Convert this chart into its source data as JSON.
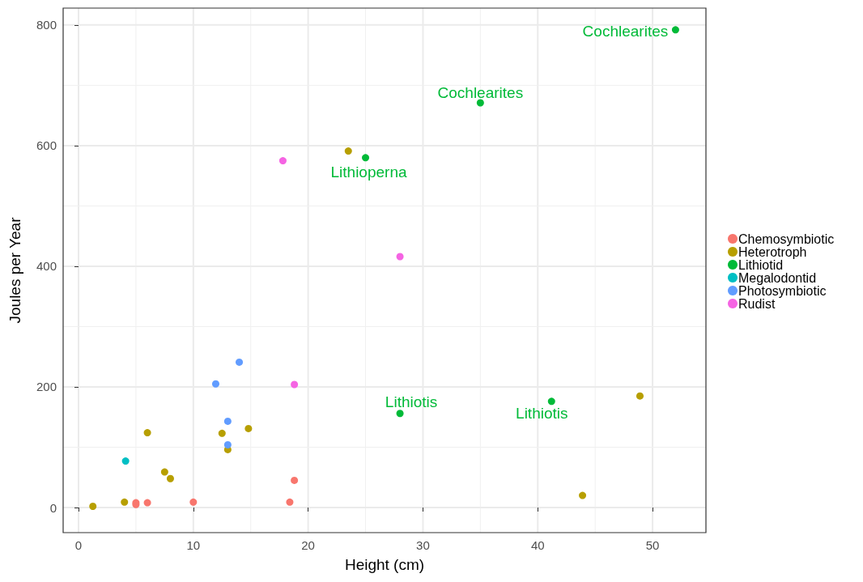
{
  "chart_data": {
    "type": "scatter",
    "xlabel": "Height (cm)",
    "ylabel": "Joules per Year",
    "xlim": [
      -1.34,
      54.65
    ],
    "ylim": [
      -41.6,
      828
    ],
    "xticks": [
      0,
      10,
      20,
      30,
      40,
      50
    ],
    "yticks": [
      0,
      200,
      400,
      600,
      800
    ],
    "grid": true,
    "legend": "right",
    "marker": "circle",
    "series": [
      {
        "name": "Chemosymbiotic",
        "color": "#f8766d",
        "x": [
          5.0,
          5.0,
          6.0,
          10.0,
          18.4,
          18.8
        ],
        "values": [
          8,
          5,
          8,
          9,
          9,
          45
        ]
      },
      {
        "name": "Heterotroph",
        "color": "#b79f00",
        "x": [
          1.25,
          4.0,
          6.0,
          7.5,
          8.0,
          12.5,
          13.0,
          14.8,
          23.5,
          43.9,
          48.9
        ],
        "values": [
          2,
          9,
          124,
          59,
          48,
          123,
          96,
          131,
          591,
          20,
          185
        ]
      },
      {
        "name": "Lithiotid",
        "color": "#00ba38",
        "x": [
          25.0,
          28.0,
          35.0,
          41.2,
          52.0
        ],
        "values": [
          580,
          156,
          671,
          176,
          792
        ]
      },
      {
        "name": "Megalodontid",
        "color": "#00bfc4",
        "x": [
          4.1
        ],
        "values": [
          77
        ]
      },
      {
        "name": "Photosymbiotic",
        "color": "#619cff",
        "x": [
          11.95,
          13.0,
          13.0,
          14.0
        ],
        "values": [
          205,
          143,
          104,
          241
        ]
      },
      {
        "name": "Rudist",
        "color": "#f564e3",
        "x": [
          17.8,
          18.8,
          28.0
        ],
        "values": [
          575,
          204,
          416
        ]
      }
    ],
    "annotations": [
      {
        "text": "Cochlearites",
        "x": 52.0,
        "y": 792
      },
      {
        "text": "Cochlearites",
        "x": 35.0,
        "y": 671
      },
      {
        "text": "Lithioperna",
        "x": 25.0,
        "y": 580
      },
      {
        "text": "Lithiotis",
        "x": 28.0,
        "y": 156
      },
      {
        "text": "Lithiotis",
        "x": 41.2,
        "y": 176
      }
    ]
  }
}
